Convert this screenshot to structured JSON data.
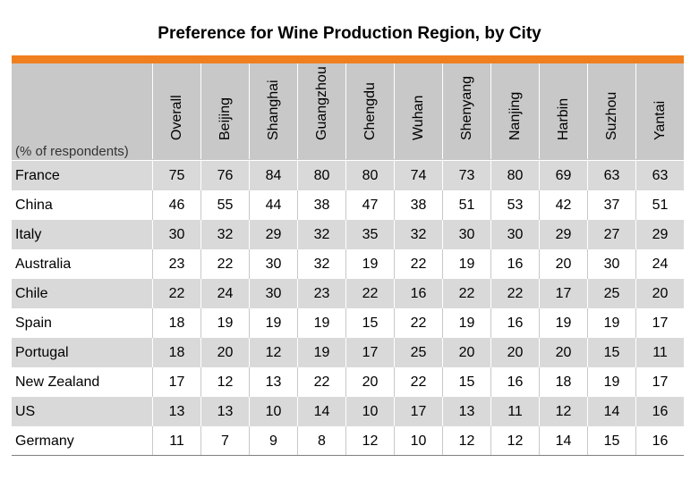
{
  "chart_data": {
    "type": "table",
    "title": "Preference for Wine Production Region, by City",
    "unit_label": "(% of respondents)",
    "columns": [
      "Overall",
      "Beijing",
      "Shanghai",
      "Guangzhou",
      "Chengdu",
      "Wuhan",
      "Shenyang",
      "Nanjing",
      "Harbin",
      "Suzhou",
      "Yantai"
    ],
    "rows": [
      {
        "label": "France",
        "values": [
          75,
          76,
          84,
          80,
          80,
          74,
          73,
          80,
          69,
          63,
          63
        ]
      },
      {
        "label": "China",
        "values": [
          46,
          55,
          44,
          38,
          47,
          38,
          51,
          53,
          42,
          37,
          51
        ]
      },
      {
        "label": "Italy",
        "values": [
          30,
          32,
          29,
          32,
          35,
          32,
          30,
          30,
          29,
          27,
          29
        ]
      },
      {
        "label": "Australia",
        "values": [
          23,
          22,
          30,
          32,
          19,
          22,
          19,
          16,
          20,
          30,
          24
        ]
      },
      {
        "label": "Chile",
        "values": [
          22,
          24,
          30,
          23,
          22,
          16,
          22,
          22,
          17,
          25,
          20
        ]
      },
      {
        "label": "Spain",
        "values": [
          18,
          19,
          19,
          19,
          15,
          22,
          19,
          16,
          19,
          19,
          17
        ]
      },
      {
        "label": "Portugal",
        "values": [
          18,
          20,
          12,
          19,
          17,
          25,
          20,
          20,
          20,
          15,
          11
        ]
      },
      {
        "label": "New Zealand",
        "values": [
          17,
          12,
          13,
          22,
          20,
          22,
          15,
          16,
          18,
          19,
          17
        ]
      },
      {
        "label": "US",
        "values": [
          13,
          13,
          10,
          14,
          10,
          17,
          13,
          11,
          12,
          14,
          16
        ]
      },
      {
        "label": "Germany",
        "values": [
          11,
          7,
          9,
          8,
          12,
          10,
          12,
          12,
          14,
          15,
          16
        ]
      }
    ]
  },
  "colors": {
    "accent": "#f07f1f",
    "header_bg": "#c8c8c8",
    "row_shade": "#d9d9d9"
  }
}
